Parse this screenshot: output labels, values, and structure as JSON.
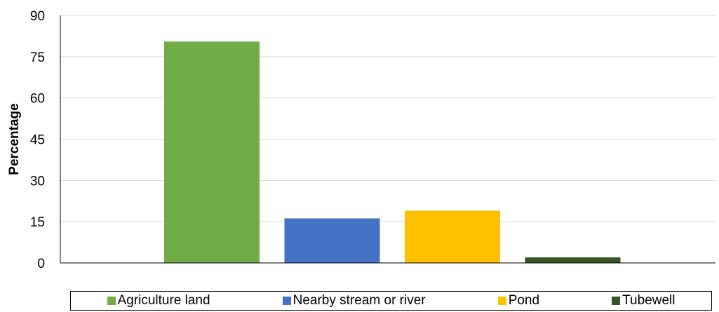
{
  "chart_data": {
    "type": "bar",
    "title": "",
    "xlabel": "",
    "ylabel": "Percentage",
    "ylim": [
      0,
      90
    ],
    "yticks": [
      0,
      15,
      30,
      45,
      60,
      75,
      90
    ],
    "grid": true,
    "legend_position": "bottom",
    "series": [
      {
        "name": "Agriculture land",
        "value": 80.5,
        "color": "#70AD47"
      },
      {
        "name": "Nearby stream or river",
        "value": 16.2,
        "color": "#4472C4"
      },
      {
        "name": "Pond",
        "value": 19.0,
        "color": "#FFC000"
      },
      {
        "name": "Tubewell",
        "value": 2.0,
        "color": "#375623"
      }
    ]
  }
}
